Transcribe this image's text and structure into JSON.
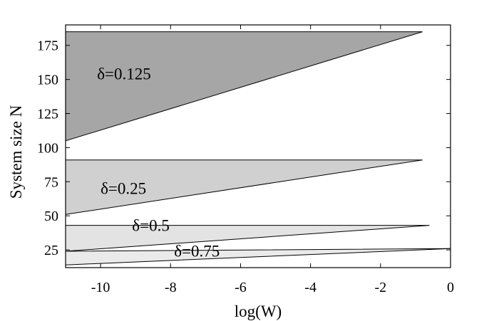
{
  "chart_data": {
    "type": "area",
    "title": "",
    "xlabel": "log(W)",
    "ylabel": "System size N",
    "xlim": [
      -11,
      0
    ],
    "ylim": [
      12,
      190
    ],
    "xticks": [
      -10,
      -8,
      -6,
      -4,
      -2,
      0
    ],
    "yticks": [
      25,
      50,
      75,
      100,
      125,
      150,
      175
    ],
    "grid": false,
    "legend": "none",
    "series": [
      {
        "label_text": "δ=0.125",
        "label_pos": [
          -10.1,
          150
        ],
        "fill": "#a6a6a6",
        "polygon": [
          [
            -11,
            185
          ],
          [
            -0.8,
            185
          ],
          [
            -11,
            105
          ]
        ]
      },
      {
        "label_text": "δ=0.25",
        "label_pos": [
          -10.0,
          66
        ],
        "fill": "#d0d0d0",
        "polygon": [
          [
            -11,
            91
          ],
          [
            -0.8,
            91
          ],
          [
            -11,
            51
          ]
        ]
      },
      {
        "label_text": "δ=0.5",
        "label_pos": [
          -9.1,
          39
        ],
        "fill": "#e3e3e3",
        "polygon": [
          [
            -11,
            43
          ],
          [
            -0.6,
            43
          ],
          [
            -11,
            24
          ]
        ]
      },
      {
        "label_text": "δ=0.75",
        "label_pos": [
          -7.9,
          20
        ],
        "fill": "#eaeaea",
        "polygon": [
          [
            -11,
            24
          ],
          [
            0,
            26
          ],
          [
            -11,
            14
          ]
        ]
      }
    ]
  }
}
